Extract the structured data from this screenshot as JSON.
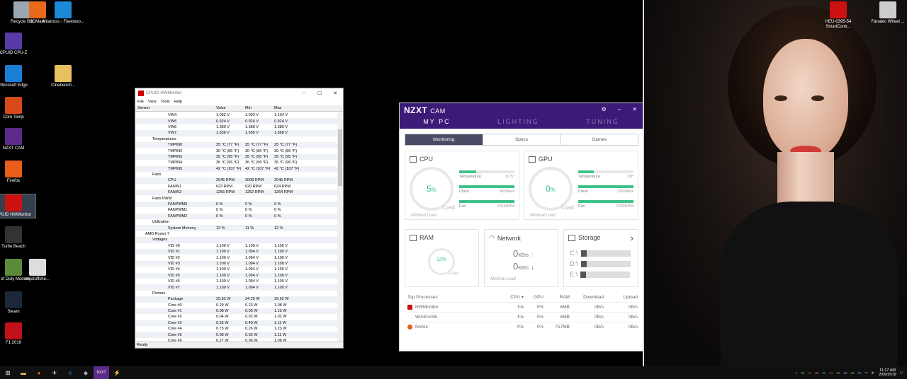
{
  "desktop_icons": [
    {
      "label": "Recycle Bin",
      "icon": "recycle-bin-icon",
      "color": "#9aa6b2"
    },
    {
      "label": "3DMark",
      "icon": "3dmark-icon",
      "color": "#e86a1a"
    },
    {
      "label": "Albatross - Fleetwoo...",
      "icon": "media-file-icon",
      "color": "#1b88d8"
    },
    {
      "label": "CPUID CPU-Z",
      "icon": "cpuz-icon",
      "color": "#5a3aa8"
    },
    {
      "label": "Microsoft Edge",
      "icon": "edge-icon",
      "color": "#1b7ed6"
    },
    {
      "label": "Cinebench...",
      "icon": "folder-icon",
      "color": "#e8c060"
    },
    {
      "label": "Core Temp",
      "icon": "core-temp-icon",
      "color": "#d84a1a"
    },
    {
      "label": "NZXT CAM",
      "icon": "nzxt-icon",
      "color": "#5b2a8a"
    },
    {
      "label": "Firefox",
      "icon": "firefox-icon",
      "color": "#e85d1a"
    },
    {
      "label": "CPUID HWMonitor",
      "icon": "hwmonitor-icon",
      "color": "#cc1111"
    },
    {
      "label": "Turtle Beach",
      "icon": "turtle-beach-icon",
      "color": "#333333"
    },
    {
      "label": "Call of Duty Modern ...",
      "icon": "cod-icon",
      "color": "#5a8a3a"
    },
    {
      "label": "mystuffche...",
      "icon": "document-icon",
      "color": "#dddddd"
    },
    {
      "label": "Steam",
      "icon": "steam-icon",
      "color": "#1b2838"
    },
    {
      "label": "F1 2019",
      "icon": "f1-icon",
      "color": "#c0101a"
    },
    {
      "label": "HEU-0395-54 SmartContr...",
      "icon": "heusinkveld-icon",
      "color": "#cc1111"
    },
    {
      "label": "Fanatec Wheel ...",
      "icon": "fanatec-icon",
      "color": "#cccccc"
    }
  ],
  "hwmonitor": {
    "title": "CPUID HWMonitor",
    "menu": [
      "File",
      "View",
      "Tools",
      "Help"
    ],
    "columns": [
      "Sensor",
      "Value",
      "Min",
      "Max"
    ],
    "rows": [
      {
        "n": "VIN4",
        "v": "1.092 V",
        "mi": "1.092 V",
        "ma": "1.104 V",
        "lv": 3
      },
      {
        "n": "VIN5",
        "v": "0.924 V",
        "mi": "0.924 V",
        "ma": "0.924 V",
        "lv": 3
      },
      {
        "n": "VIN6",
        "v": "1.380 V",
        "mi": "1.380 V",
        "ma": "1.380 V",
        "lv": 3
      },
      {
        "n": "VIN7",
        "v": "1.656 V",
        "mi": "1.656 V",
        "ma": "1.668 V",
        "lv": 3
      },
      {
        "n": "Temperatures",
        "v": "",
        "mi": "",
        "ma": "",
        "lv": 2
      },
      {
        "n": "TMPIN0",
        "v": "25 °C  (77 °F)",
        "mi": "25 °C  (77 °F)",
        "ma": "25 °C  (77 °F)",
        "lv": 3
      },
      {
        "n": "TMPIN2",
        "v": "30 °C  (86 °F)",
        "mi": "30 °C  (86 °F)",
        "ma": "30 °C  (86 °F)",
        "lv": 3
      },
      {
        "n": "TMPIN3",
        "v": "35 °C  (95 °F)",
        "mi": "35 °C  (95 °F)",
        "ma": "35 °C  (95 °F)",
        "lv": 3
      },
      {
        "n": "TMPIN4",
        "v": "36 °C  (96 °F)",
        "mi": "36 °C  (96 °F)",
        "ma": "36 °C  (96 °F)",
        "lv": 3
      },
      {
        "n": "TMPIN5",
        "v": "42 °C  (107 °F)",
        "mi": "42 °C  (107 °F)",
        "ma": "42 °C  (107 °F)",
        "lv": 3
      },
      {
        "n": "Fans",
        "v": "",
        "mi": "",
        "ma": "",
        "lv": 2
      },
      {
        "n": "CPU",
        "v": "2045 RPM",
        "mi": "2008 RPM",
        "ma": "2045 RPM",
        "lv": 3
      },
      {
        "n": "FANIN1",
        "v": "623 RPM",
        "mi": "620 RPM",
        "ma": "624 RPM",
        "lv": 3
      },
      {
        "n": "FANIN2",
        "v": "1256 RPM",
        "mi": "1252 RPM",
        "ma": "1264 RPM",
        "lv": 3
      },
      {
        "n": "Fans PWM",
        "v": "",
        "mi": "",
        "ma": "",
        "lv": 2
      },
      {
        "n": "FANPWM0",
        "v": "0 %",
        "mi": "0 %",
        "ma": "0 %",
        "lv": 3
      },
      {
        "n": "FANPWM1",
        "v": "0 %",
        "mi": "0 %",
        "ma": "0 %",
        "lv": 3
      },
      {
        "n": "FANPWM2",
        "v": "0 %",
        "mi": "0 %",
        "ma": "0 %",
        "lv": 3
      },
      {
        "n": "Utilization",
        "v": "",
        "mi": "",
        "ma": "",
        "lv": 2
      },
      {
        "n": "System Memory",
        "v": "12 %",
        "mi": "11 %",
        "ma": "12 %",
        "lv": 3
      },
      {
        "n": "AMD Ryzen 7",
        "v": "",
        "mi": "",
        "ma": "",
        "lv": 1
      },
      {
        "n": "Voltages",
        "v": "",
        "mi": "",
        "ma": "",
        "lv": 2
      },
      {
        "n": "VID #0",
        "v": "1.100 V",
        "mi": "1.100 V",
        "ma": "1.100 V",
        "lv": 3
      },
      {
        "n": "VID #1",
        "v": "1.100 V",
        "mi": "1.094 V",
        "ma": "1.100 V",
        "lv": 3
      },
      {
        "n": "VID #2",
        "v": "1.100 V",
        "mi": "1.094 V",
        "ma": "1.100 V",
        "lv": 3
      },
      {
        "n": "VID #3",
        "v": "1.100 V",
        "mi": "1.094 V",
        "ma": "1.100 V",
        "lv": 3
      },
      {
        "n": "VID #4",
        "v": "1.100 V",
        "mi": "1.094 V",
        "ma": "1.100 V",
        "lv": 3
      },
      {
        "n": "VID #5",
        "v": "1.100 V",
        "mi": "1.094 V",
        "ma": "1.100 V",
        "lv": 3
      },
      {
        "n": "VID #6",
        "v": "1.100 V",
        "mi": "1.094 V",
        "ma": "1.100 V",
        "lv": 3
      },
      {
        "n": "VID #7",
        "v": "1.100 V",
        "mi": "1.094 V",
        "ma": "1.100 V",
        "lv": 3
      },
      {
        "n": "Powers",
        "v": "",
        "mi": "",
        "ma": "",
        "lv": 2
      },
      {
        "n": "Package",
        "v": "25.82 W",
        "mi": "24.25 W",
        "ma": "29.92 W",
        "lv": 3
      },
      {
        "n": "Core #0",
        "v": "0.29 W",
        "mi": "0.23 W",
        "ma": "1.08 W",
        "lv": 3
      },
      {
        "n": "Core #1",
        "v": "0.08 W",
        "mi": "0.05 W",
        "ma": "1.13 W",
        "lv": 3
      },
      {
        "n": "Core #2",
        "v": "0.04 W",
        "mi": "0.02 W",
        "ma": "1.02 W",
        "lv": 3
      },
      {
        "n": "Core #3",
        "v": "0.55 W",
        "mi": "0.40 W",
        "ma": "1.11 W",
        "lv": 3
      },
      {
        "n": "Core #4",
        "v": "0.75 W",
        "mi": "0.26 W",
        "ma": "1.23 W",
        "lv": 3
      },
      {
        "n": "Core #5",
        "v": "0.08 W",
        "mi": "0.02 W",
        "ma": "1.11 W",
        "lv": 3
      },
      {
        "n": "Core #6",
        "v": "0.27 W",
        "mi": "0.06 W",
        "ma": "1.08 W",
        "lv": 3
      }
    ],
    "status": "Ready"
  },
  "cam": {
    "brand": "NZXT",
    "brand_sub": "CAM",
    "nav": [
      "MY PC",
      "LIGHTING",
      "TUNING"
    ],
    "tabs": [
      "Monitoring",
      "Specs",
      "Games"
    ],
    "cpu": {
      "title": "CPU",
      "load": "5",
      "unit": "%",
      "load_label": "Load",
      "min_load": "Minimal Load",
      "temp_label": "Temperature",
      "temp": "30.5°",
      "clock_label": "Clock",
      "clock": "800",
      "clock_unit": "MHz",
      "fan_label": "Fan",
      "fan": "2014",
      "fan_unit": "RPM"
    },
    "gpu": {
      "title": "GPU",
      "load": "0",
      "unit": "%",
      "load_label": "Load",
      "min_load": "Minimal Load",
      "temp_label": "Temperature",
      "temp": "28°",
      "clock_label": "Clock",
      "clock": "1350",
      "clock_unit": "MHz",
      "fan_label": "Fan",
      "fan": "1302",
      "fan_unit": "RPM"
    },
    "ram": {
      "title": "RAM",
      "load": "12%",
      "load_label": "Load"
    },
    "network": {
      "title": "Network",
      "down": "0",
      "up": "0",
      "unit": "KB/s",
      "min_load": "Minimal Load"
    },
    "storage": {
      "title": "Storage",
      "drives": [
        "C:\\",
        "D:\\",
        "E:\\"
      ]
    },
    "processes": {
      "headers": [
        "Top Processes",
        "CPU ▾",
        "GPU",
        "RAM",
        "Download",
        "Upload"
      ],
      "rows": [
        {
          "name": "HWMonitor",
          "cpu": "1%",
          "gpu": "0%",
          "ram": "6MB",
          "dl": "0B/s",
          "ul": "0B/s",
          "icon": "hwmonitor-icon"
        },
        {
          "name": "WmiPrvSE",
          "cpu": "1%",
          "gpu": "0%",
          "ram": "6MB",
          "dl": "0B/s",
          "ul": "0B/s",
          "icon": ""
        },
        {
          "name": "firefox",
          "cpu": "0%",
          "gpu": "0%",
          "ram": "757MB",
          "dl": "0B/s",
          "ul": "0B/s",
          "icon": "firefox-icon"
        }
      ]
    },
    "accent": "#3fc28a",
    "header_color": "#3c1a78"
  },
  "taskbar": {
    "time": "11:17 AM",
    "date": "2/09/2019",
    "tray_numbers": [
      "31",
      "31",
      "31",
      "31",
      "31",
      "31",
      "31",
      "31",
      "31"
    ]
  }
}
